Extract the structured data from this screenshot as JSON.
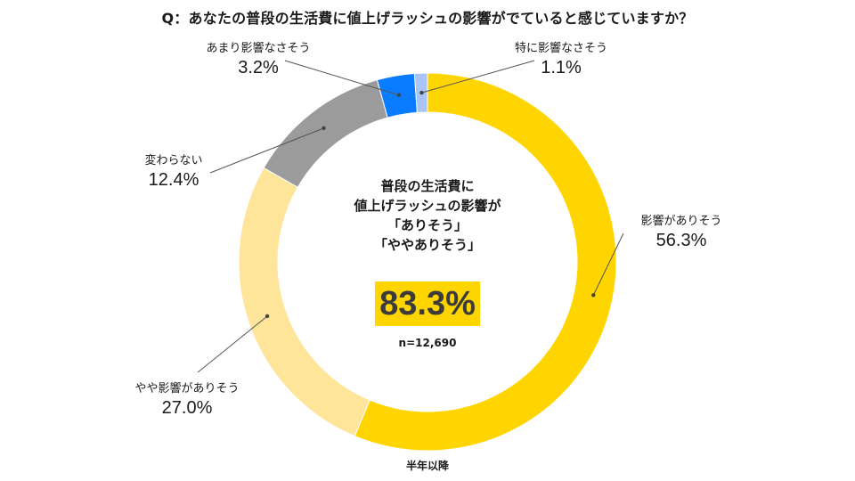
{
  "title": "Q：あなたの普段の生活費に値上げラッシュの影響がでていると感じていますか？",
  "center": {
    "line1": "普段の生活費に",
    "line2": "値上げラッシュの影響が",
    "line3": "「ありそう」",
    "line4": "「ややありそう」",
    "total_pct": "83.3%",
    "n": "n=12,690"
  },
  "footnote": "半年以降",
  "chart_data": {
    "type": "pie",
    "variant": "donut",
    "title": "Q：あなたの普段の生活費に値上げラッシュの影響がでていると感じていますか？",
    "categories": [
      "影響がありそう",
      "やや影響がありそう",
      "変わらない",
      "あまり影響なさそう",
      "特に影響なさそう"
    ],
    "values": [
      56.3,
      27.0,
      12.4,
      3.2,
      1.1
    ],
    "value_labels": [
      "56.3%",
      "27.0%",
      "12.4%",
      "3.2%",
      "1.1%"
    ],
    "colors": [
      "#ffd500",
      "#ffe59a",
      "#9b9b9b",
      "#0a7cff",
      "#a9c4f5"
    ]
  }
}
